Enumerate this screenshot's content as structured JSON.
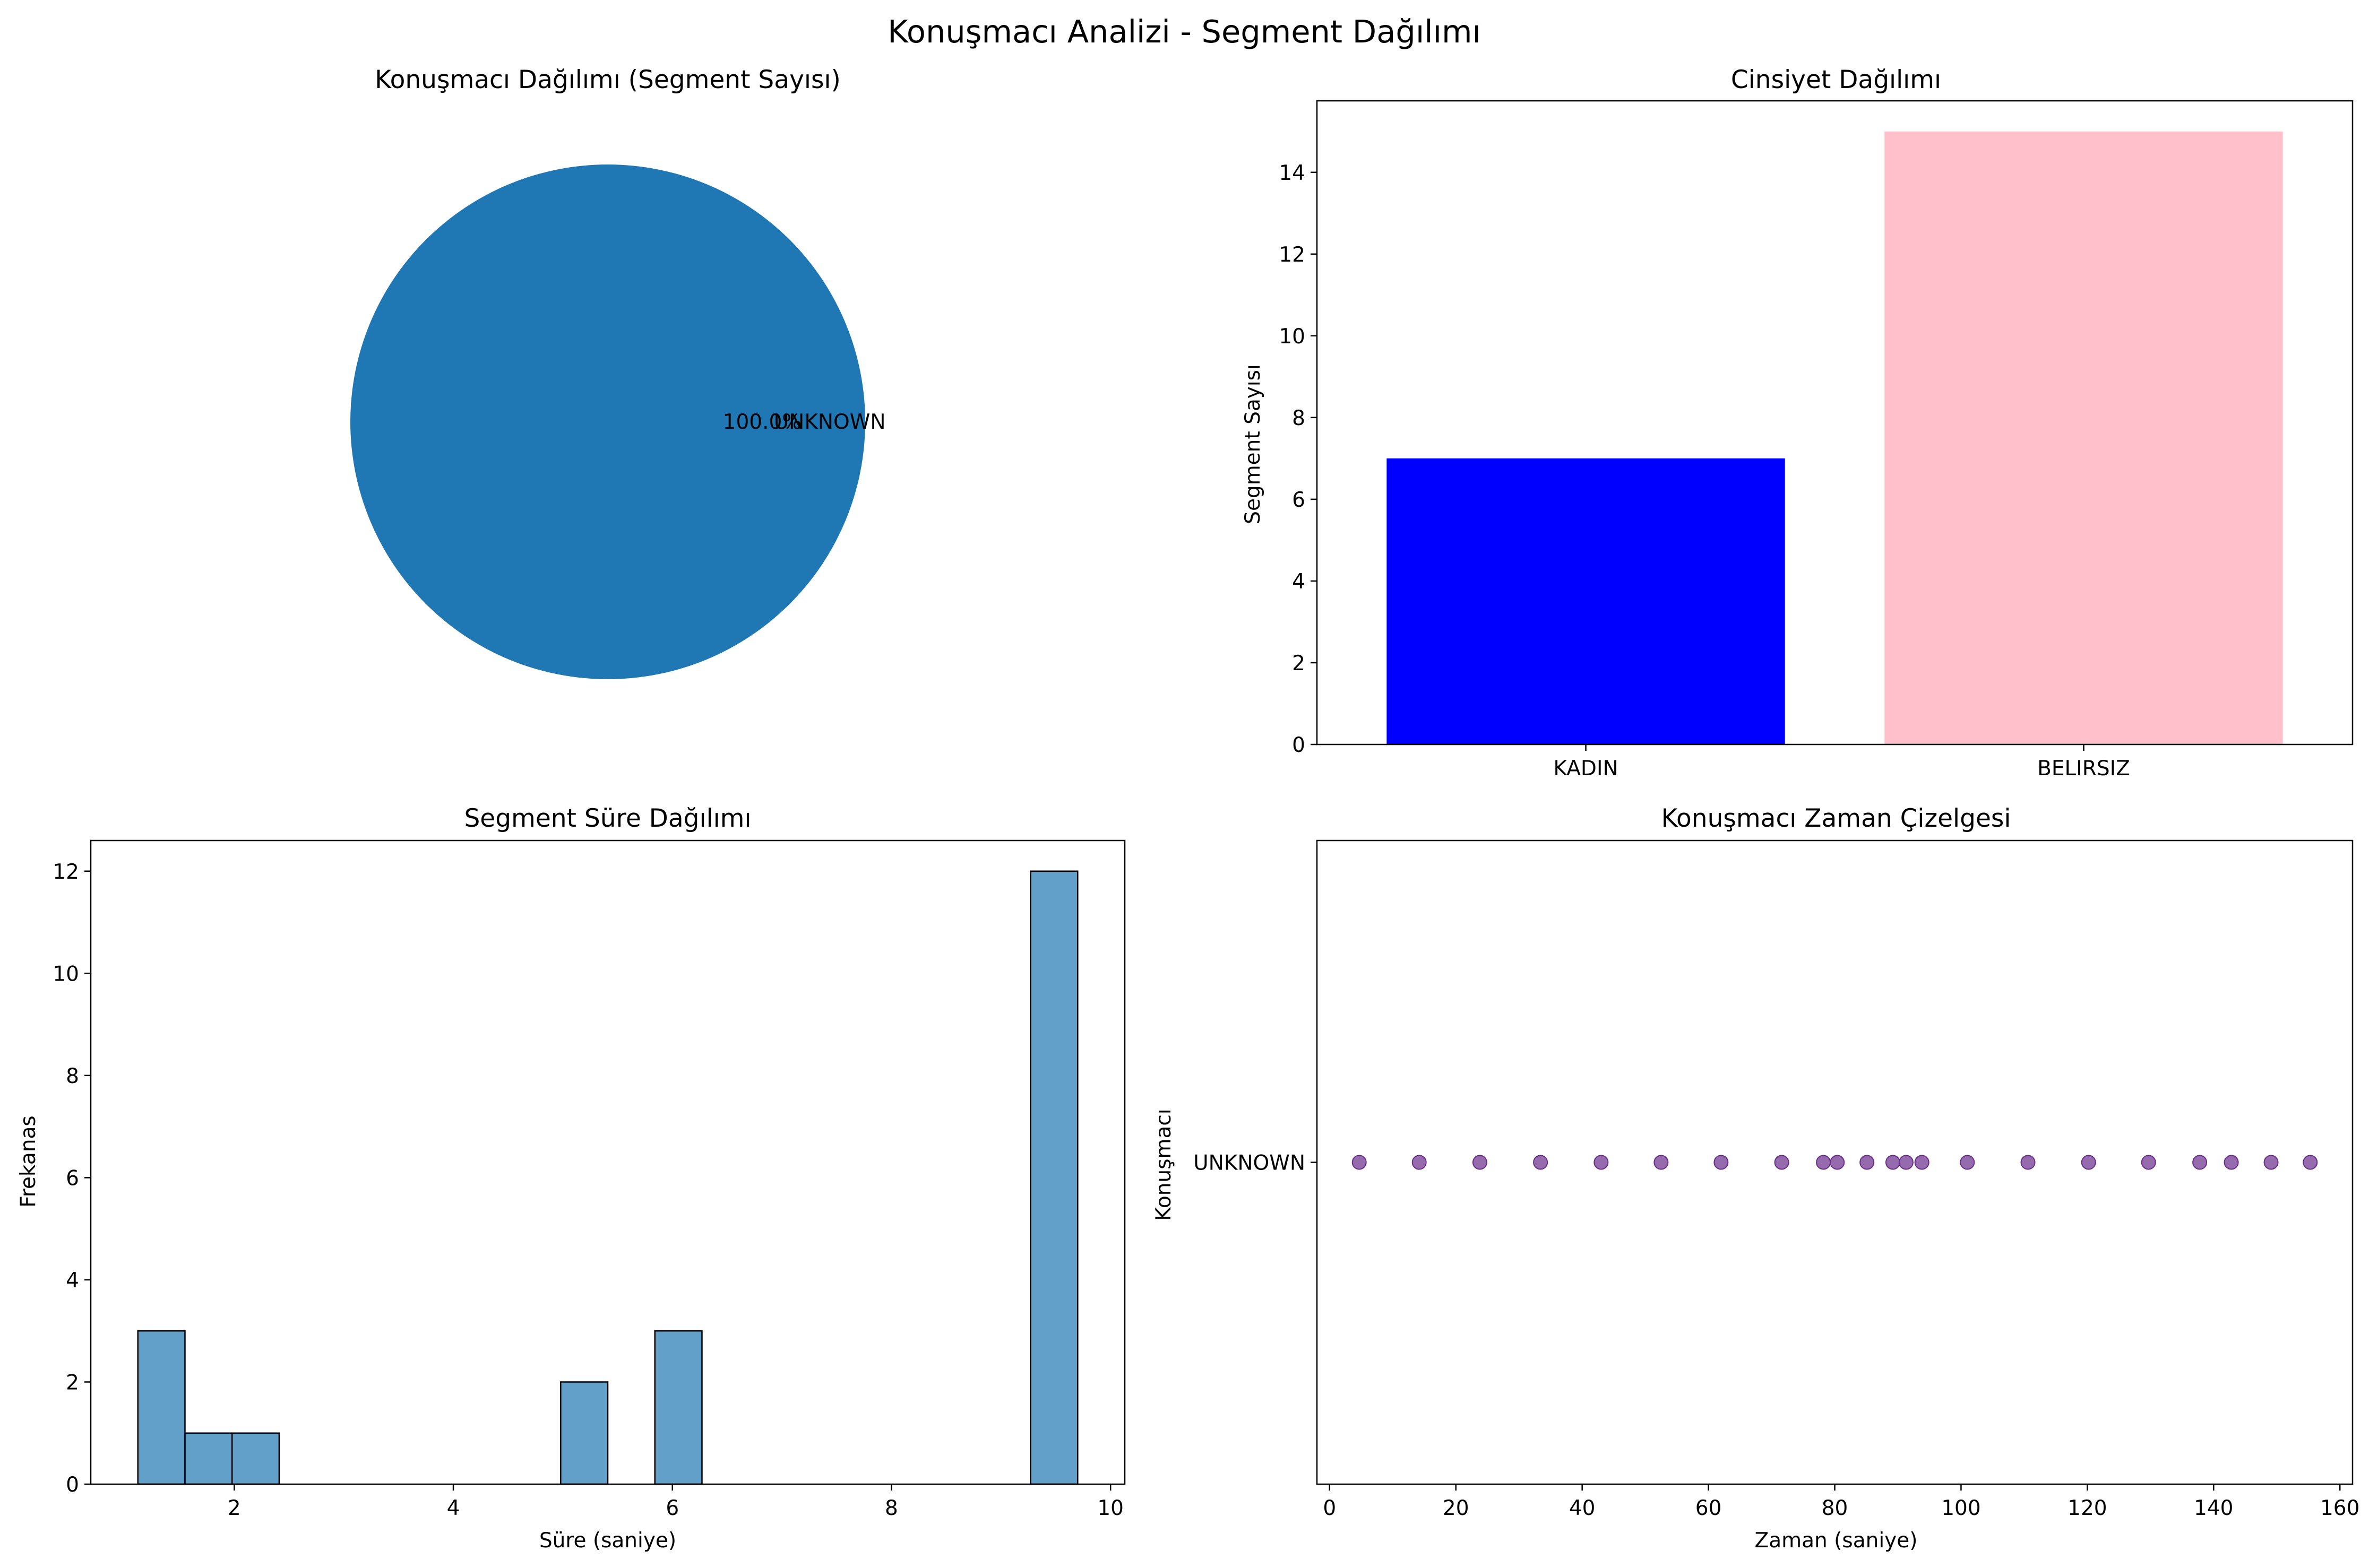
{
  "figure": {
    "title": "Konuşmacı Analizi - Segment Dağılımı"
  },
  "chart_data": [
    {
      "type": "pie",
      "title": "Konuşmacı Dağılımı (Segment Sayısı)",
      "labels": [
        "UNKNOWN"
      ],
      "values": [
        100.0
      ],
      "autopct_labels": [
        "100.0%"
      ],
      "colors": [
        "#1f77b4"
      ]
    },
    {
      "type": "bar",
      "title": "Cinsiyet Dağılımı",
      "xlabel": "",
      "ylabel": "Segment Sayısı",
      "categories": [
        "KADIN",
        "BELIRSIZ"
      ],
      "values": [
        7,
        15
      ],
      "colors": [
        "#0000ff",
        "#ffc0cb"
      ],
      "ylim": [
        0,
        15.75
      ],
      "yticks": [
        0,
        2,
        4,
        6,
        8,
        10,
        12,
        14
      ],
      "grid": false
    },
    {
      "type": "bar",
      "subtype": "histogram",
      "title": "Segment Süre Dağılımı",
      "xlabel": "Süre (saniye)",
      "ylabel": "Frekanas",
      "bins": [
        {
          "x0": 1.12,
          "x1": 1.55,
          "count": 3
        },
        {
          "x0": 1.55,
          "x1": 1.98,
          "count": 1
        },
        {
          "x0": 1.98,
          "x1": 2.41,
          "count": 1
        },
        {
          "x0": 2.41,
          "x1": 2.84,
          "count": 0
        },
        {
          "x0": 2.84,
          "x1": 3.26,
          "count": 0
        },
        {
          "x0": 3.26,
          "x1": 3.69,
          "count": 0
        },
        {
          "x0": 3.69,
          "x1": 4.12,
          "count": 0
        },
        {
          "x0": 4.12,
          "x1": 4.55,
          "count": 0
        },
        {
          "x0": 4.55,
          "x1": 4.98,
          "count": 0
        },
        {
          "x0": 4.98,
          "x1": 5.41,
          "count": 2
        },
        {
          "x0": 5.41,
          "x1": 5.84,
          "count": 0
        },
        {
          "x0": 5.84,
          "x1": 6.27,
          "count": 3
        },
        {
          "x0": 6.27,
          "x1": 6.7,
          "count": 0
        },
        {
          "x0": 6.7,
          "x1": 7.13,
          "count": 0
        },
        {
          "x0": 7.13,
          "x1": 7.56,
          "count": 0
        },
        {
          "x0": 7.56,
          "x1": 7.98,
          "count": 0
        },
        {
          "x0": 7.98,
          "x1": 8.41,
          "count": 0
        },
        {
          "x0": 8.41,
          "x1": 8.84,
          "count": 0
        },
        {
          "x0": 8.84,
          "x1": 9.27,
          "count": 0
        },
        {
          "x0": 9.27,
          "x1": 9.7,
          "count": 12
        }
      ],
      "color": "#1f77b4",
      "alpha": 0.7,
      "edgecolor": "#000000",
      "xlim": [
        0.69,
        10.13
      ],
      "ylim": [
        0,
        12.6
      ],
      "xticks": [
        2,
        4,
        6,
        8,
        10
      ],
      "yticks": [
        0,
        2,
        4,
        6,
        8,
        10,
        12
      ],
      "grid": false
    },
    {
      "type": "scatter",
      "title": "Konuşmacı Zaman Çizelgesi",
      "xlabel": "Zaman (saniye)",
      "ylabel": "Konuşmacı",
      "categories": [
        "UNKNOWN"
      ],
      "series": [
        {
          "x": [
            4.7,
            14.2,
            23.8,
            33.4,
            43.0,
            52.5,
            62.0,
            71.6,
            78.2,
            80.4,
            85.1,
            89.2,
            91.3,
            93.8,
            101.0,
            110.6,
            120.2,
            129.7,
            137.8,
            142.8,
            149.1,
            155.3
          ],
          "y": [
            "UNKNOWN",
            "UNKNOWN",
            "UNKNOWN",
            "UNKNOWN",
            "UNKNOWN",
            "UNKNOWN",
            "UNKNOWN",
            "UNKNOWN",
            "UNKNOWN",
            "UNKNOWN",
            "UNKNOWN",
            "UNKNOWN",
            "UNKNOWN",
            "UNKNOWN",
            "UNKNOWN",
            "UNKNOWN",
            "UNKNOWN",
            "UNKNOWN",
            "UNKNOWN",
            "UNKNOWN",
            "UNKNOWN",
            "UNKNOWN"
          ]
        }
      ],
      "color": "#6a2c8a",
      "alpha": 0.7,
      "xlim": [
        -2.0,
        162.0
      ],
      "xticks": [
        0,
        20,
        40,
        60,
        80,
        100,
        120,
        140,
        160
      ],
      "grid": false
    }
  ]
}
